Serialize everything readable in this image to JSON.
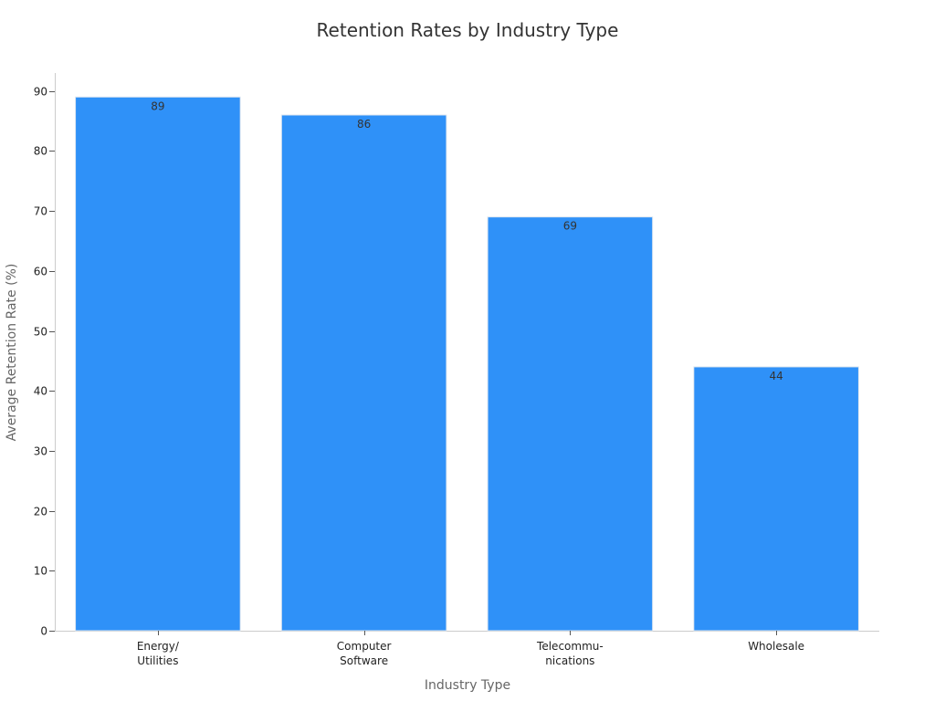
{
  "chart_data": {
    "type": "bar",
    "title": "Retention Rates by Industry Type",
    "xlabel": "Industry Type",
    "ylabel": "Average Retention Rate (%)",
    "categories": [
      [
        "Energy/",
        "Utilities"
      ],
      [
        "Computer",
        "Software"
      ],
      [
        "Telecommu-",
        "nications"
      ],
      [
        "Wholesale"
      ]
    ],
    "values": [
      89,
      86,
      69,
      44
    ],
    "data_labels": [
      "89",
      "86",
      "69",
      "44"
    ],
    "ylim": [
      0,
      93
    ],
    "yticks": [
      0,
      10,
      20,
      30,
      40,
      50,
      60,
      70,
      80,
      90
    ],
    "grid": false,
    "bar_color": "#2f91f8",
    "bar_edge_color": "#dfe7f0"
  }
}
